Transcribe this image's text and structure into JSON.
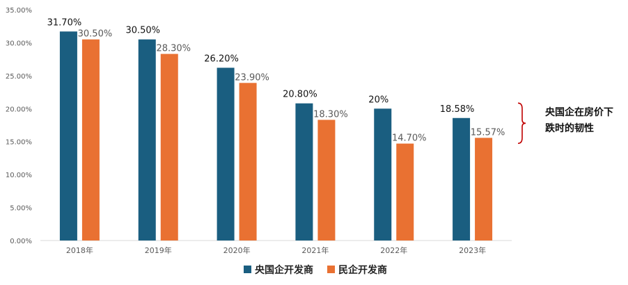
{
  "chart_data": {
    "type": "bar",
    "categories": [
      "2018年",
      "2019年",
      "2020年",
      "2021年",
      "2022年",
      "2023年"
    ],
    "series": [
      {
        "name": "央国企开发商",
        "color": "#1a5e80",
        "values": [
          31.7,
          30.5,
          26.2,
          20.8,
          20.0,
          18.58
        ],
        "labels": [
          "31.70%",
          "30.50%",
          "26.20%",
          "20.80%",
          "20%",
          "18.58%"
        ]
      },
      {
        "name": "民企开发商",
        "color": "#e97132",
        "values": [
          30.5,
          28.3,
          23.9,
          18.3,
          14.7,
          15.57
        ],
        "labels": [
          "30.50%",
          "28.30%",
          "23.90%",
          "18.30%",
          "14.70%",
          "15.57%"
        ]
      }
    ],
    "y_ticks": [
      "0.00%",
      "5.00%",
      "10.00%",
      "15.00%",
      "20.00%",
      "25.00%",
      "30.00%",
      "35.00%"
    ],
    "ylim": [
      0,
      35
    ],
    "grid": false,
    "legend_position": "bottom",
    "annotation": {
      "lines": [
        "央国企在房价下",
        "跌时的韧性"
      ],
      "bracket_color": "#c00000",
      "bracket_range": [
        15.57,
        20.0
      ]
    }
  }
}
